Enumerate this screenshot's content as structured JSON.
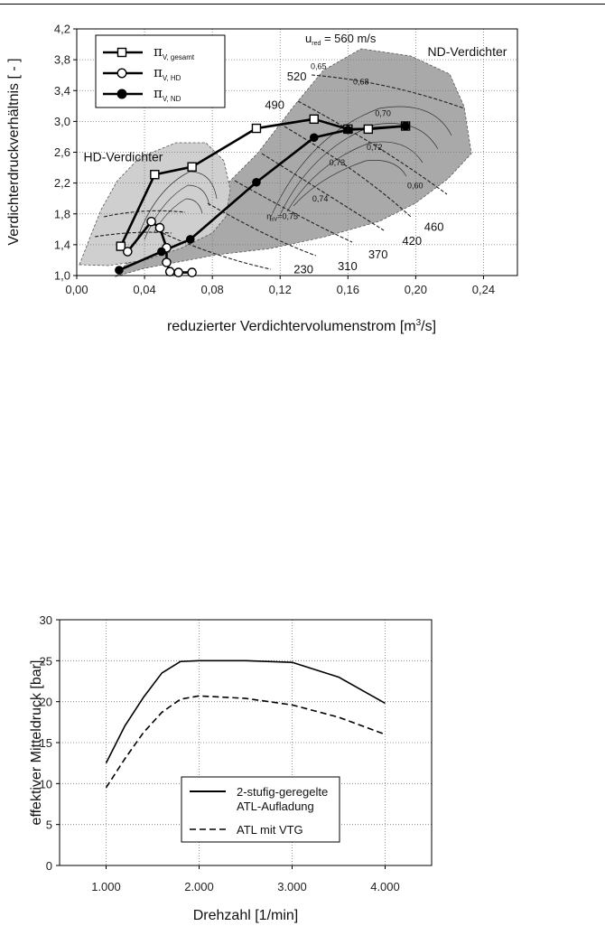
{
  "chart_data": [
    {
      "type": "line",
      "xlabel": "reduzierter Verdichtervolumenstrom [m³/s]",
      "xlabel_parts": [
        "reduzierter Verdichtervolumenstrom [m",
        "3",
        "/s]"
      ],
      "ylabel": "Verdichterdruckverhältnis [ - ]",
      "xlim": [
        0.0,
        0.26
      ],
      "ylim": [
        1.0,
        4.2
      ],
      "xticks": [
        "0,00",
        "0,04",
        "0,08",
        "0,12",
        "0,16",
        "0,20",
        "0,24"
      ],
      "yticks": [
        "1,0",
        "1,4",
        "1,8",
        "2,2",
        "2,6",
        "3,0",
        "3,4",
        "3,8",
        "4,2"
      ],
      "grid": true,
      "legend_position": "top-left",
      "legend": {
        "items": [
          {
            "symbol": "π",
            "sub": "V, gesamt",
            "marker": "open-square"
          },
          {
            "symbol": "π",
            "sub": "V, HD",
            "marker": "open-circle"
          },
          {
            "symbol": "π",
            "sub": "V, ND",
            "marker": "filled-circle"
          }
        ]
      },
      "series": [
        {
          "name": "π V, gesamt",
          "marker": "square",
          "x": [
            0.026,
            0.046,
            0.068,
            0.106,
            0.14,
            0.16,
            0.172,
            0.194
          ],
          "y": [
            1.38,
            2.31,
            2.41,
            2.91,
            3.03,
            2.9,
            2.9,
            2.94
          ]
        },
        {
          "name": "π V, HD",
          "marker": "open-circle",
          "x": [
            0.03,
            0.044,
            0.049,
            0.053,
            0.053,
            0.055,
            0.06,
            0.068
          ],
          "y": [
            1.31,
            1.7,
            1.62,
            1.36,
            1.17,
            1.05,
            1.04,
            1.04
          ]
        },
        {
          "name": "π V, ND",
          "marker": "filled-circle",
          "x": [
            0.025,
            0.05,
            0.067,
            0.106,
            0.14,
            0.16,
            0.194
          ],
          "y": [
            1.07,
            1.31,
            1.47,
            2.21,
            2.79,
            2.89,
            2.94
          ]
        }
      ],
      "annotations": {
        "region_labels": [
          {
            "text": "HD-Verdichter",
            "x": 0.004,
            "y": 2.48
          },
          {
            "text": "ND-Verdichter",
            "x": 0.207,
            "y": 3.85
          }
        ],
        "speed_header": {
          "main": "u",
          "sub": "red",
          "rest": " = 560 m/s"
        },
        "speed_labels": [
          {
            "text": "520",
            "x": 0.124,
            "y": 3.53
          },
          {
            "text": "490",
            "x": 0.111,
            "y": 3.16
          },
          {
            "text": "460",
            "x": 0.205,
            "y": 1.58
          },
          {
            "text": "420",
            "x": 0.192,
            "y": 1.4
          },
          {
            "text": "370",
            "x": 0.172,
            "y": 1.22
          },
          {
            "text": "310",
            "x": 0.154,
            "y": 1.07
          },
          {
            "text": "230",
            "x": 0.128,
            "y": 1.03
          }
        ],
        "efficiency_labels": [
          {
            "text": "0,65",
            "x": 0.138,
            "y": 3.68
          },
          {
            "text": "0,68",
            "x": 0.163,
            "y": 3.48
          },
          {
            "text": "0,70",
            "x": 0.176,
            "y": 3.07
          },
          {
            "text": "0,72",
            "x": 0.171,
            "y": 2.63
          },
          {
            "text": "0,73",
            "x": 0.149,
            "y": 2.43
          },
          {
            "text": "0,74",
            "x": 0.139,
            "y": 1.96
          },
          {
            "text": "0,60",
            "x": 0.195,
            "y": 2.13
          }
        ],
        "eta_label": {
          "main": "η",
          "sub": "sV",
          "rest": "=0,75",
          "x": 0.112,
          "y": 1.73
        }
      }
    },
    {
      "type": "line",
      "xlabel": "Drehzahl [1/min]",
      "ylabel": "effektiver Mitteldruck [bar]",
      "xlim": [
        500,
        4500
      ],
      "ylim": [
        0,
        30
      ],
      "xticks": [
        "1.000",
        "2.000",
        "3.000",
        "4.000"
      ],
      "yticks": [
        "0",
        "5",
        "10",
        "15",
        "20",
        "25",
        "30"
      ],
      "grid": true,
      "legend_position": "bottom-right",
      "series": [
        {
          "name": "2-stufig-geregelte ATL-Aufladung",
          "name_lines": [
            "2-stufig-geregelte",
            "ATL-Aufladung"
          ],
          "style": "solid",
          "x": [
            1000,
            1200,
            1400,
            1600,
            1800,
            2000,
            2500,
            3000,
            3500,
            4000
          ],
          "y": [
            12.5,
            17.0,
            20.5,
            23.5,
            24.9,
            25.0,
            25.0,
            24.8,
            23.0,
            19.8
          ]
        },
        {
          "name": "ATL mit VTG",
          "name_lines": [
            "ATL mit VTG"
          ],
          "style": "dashed",
          "x": [
            1000,
            1200,
            1400,
            1600,
            1800,
            2000,
            2500,
            3000,
            3500,
            4000
          ],
          "y": [
            9.5,
            13.0,
            16.2,
            18.7,
            20.3,
            20.7,
            20.4,
            19.6,
            18.1,
            16.0
          ]
        }
      ]
    }
  ]
}
